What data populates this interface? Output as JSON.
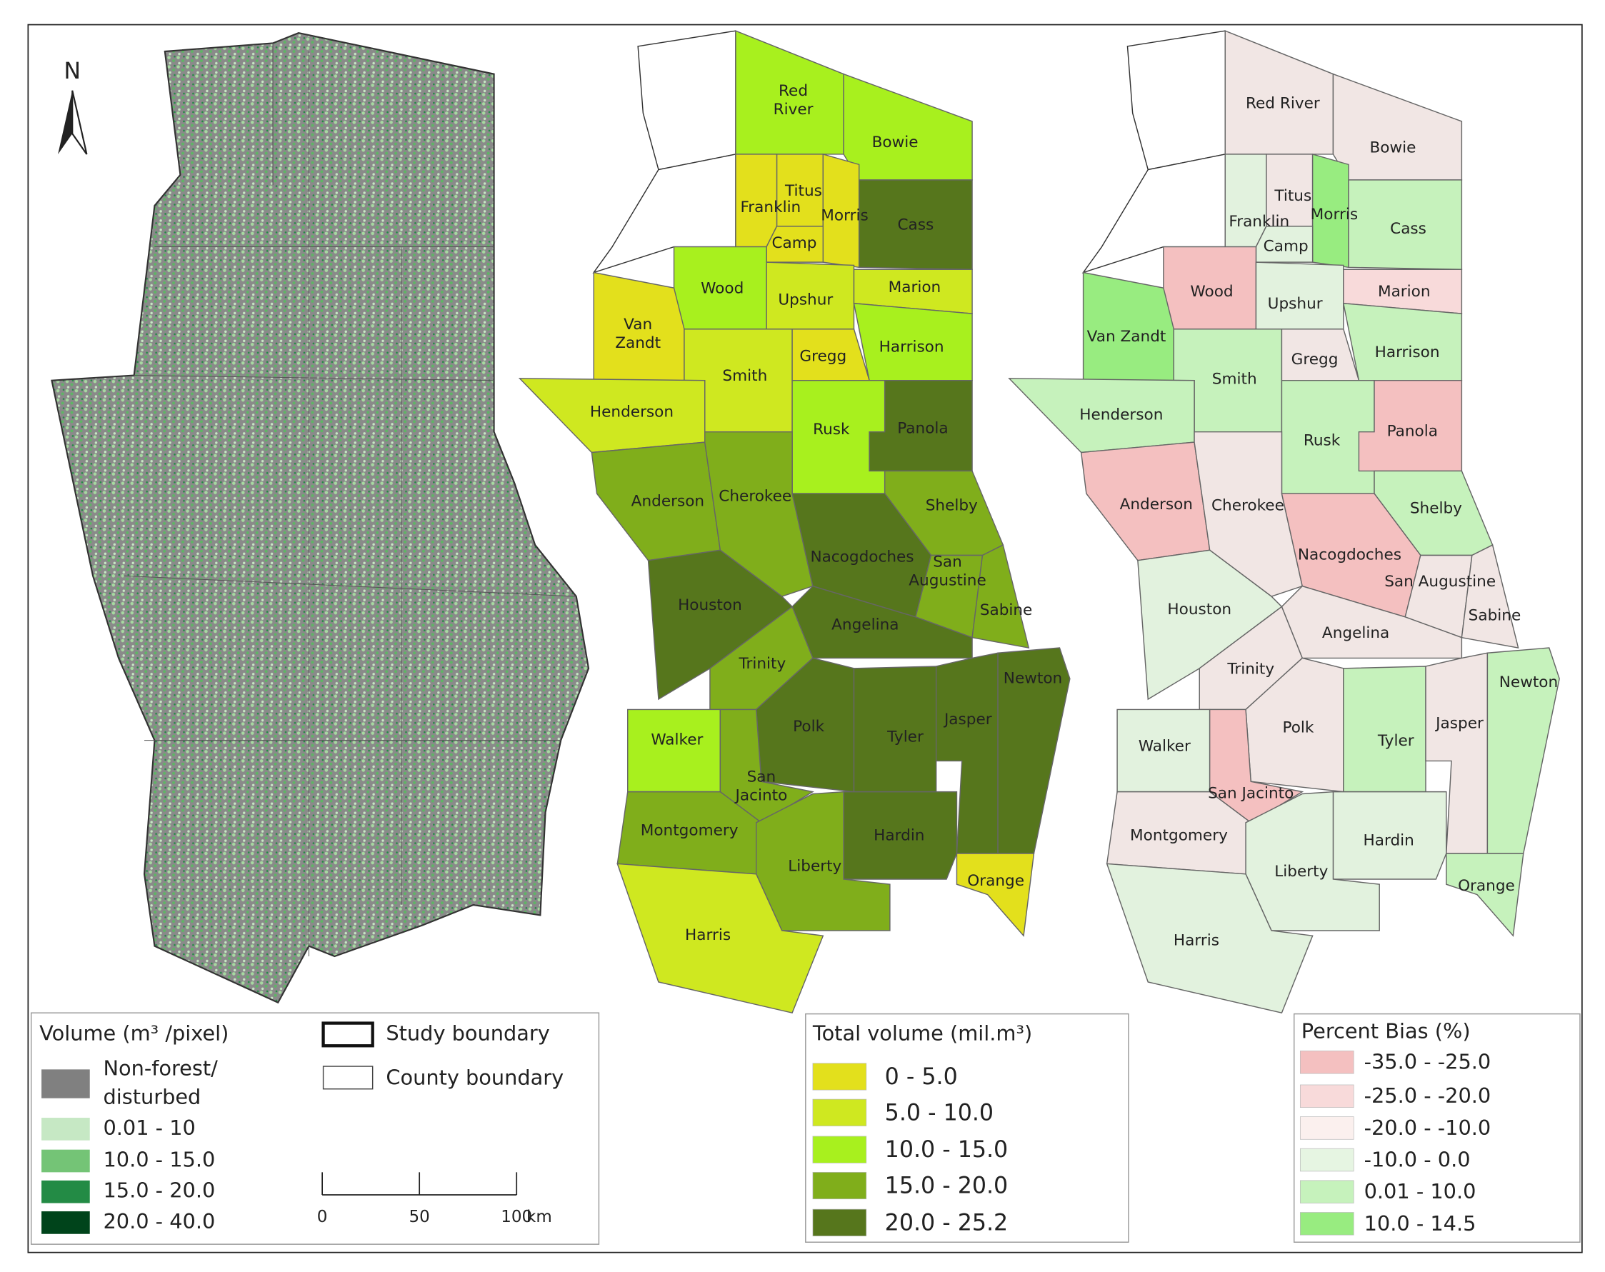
{
  "north_arrow": "N",
  "volume_legend": {
    "title": "Volume (m³ /pixel)",
    "items": [
      {
        "label": [
          "Non-forest/",
          "disturbed"
        ],
        "color": "#808080"
      },
      {
        "label": "0.01 - 10",
        "color": "#c6e8c4"
      },
      {
        "label": "10.0 - 15.0",
        "color": "#74c476"
      },
      {
        "label": "15.0 - 20.0",
        "color": "#238b45"
      },
      {
        "label": "20.0 - 40.0",
        "color": "#00441b"
      }
    ]
  },
  "boundary_legend": {
    "items": [
      "Study boundary",
      "County boundary"
    ]
  },
  "scale_bar": {
    "ticks": [
      0,
      50,
      100
    ],
    "unit": "km"
  },
  "total_volume_map": {
    "legend": {
      "title": "Total volume (mil.m³)",
      "items": [
        {
          "label": "0 - 5.0",
          "color": "#e3e01c"
        },
        {
          "label": "5.0 - 10.0",
          "color": "#cfe820"
        },
        {
          "label": "10.0 - 15.0",
          "color": "#a8f01e"
        },
        {
          "label": "15.0 - 20.0",
          "color": "#80ae1b"
        },
        {
          "label": "20.0 - 25.2",
          "color": "#56761c"
        }
      ]
    },
    "counties": [
      {
        "label": [
          "Red",
          "River"
        ],
        "color": "#a8f01e"
      },
      {
        "label": "Bowie",
        "color": "#a8f01e"
      },
      {
        "label": "Titus",
        "color": "#e3e01c"
      },
      {
        "label": "Franklin",
        "color": "#e3e01c"
      },
      {
        "label": "Morris",
        "color": "#e3e01c"
      },
      {
        "label": "Cass",
        "color": "#56761c"
      },
      {
        "label": "Camp",
        "color": "#e3e01c"
      },
      {
        "label": "Wood",
        "color": "#a8f01e"
      },
      {
        "label": "Upshur",
        "color": "#cfe820"
      },
      {
        "label": "Marion",
        "color": "#cfe820"
      },
      {
        "label": [
          "Van",
          "Zandt"
        ],
        "color": "#e3e01c"
      },
      {
        "label": "Smith",
        "color": "#cfe820"
      },
      {
        "label": "Gregg",
        "color": "#e3e01c"
      },
      {
        "label": "Harrison",
        "color": "#a8f01e"
      },
      {
        "label": "Henderson",
        "color": "#cfe820"
      },
      {
        "label": "Rusk",
        "color": "#a8f01e"
      },
      {
        "label": "Panola",
        "color": "#56761c"
      },
      {
        "label": "Anderson",
        "color": "#80ae1b"
      },
      {
        "label": "Cherokee",
        "color": "#80ae1b"
      },
      {
        "label": "Shelby",
        "color": "#80ae1b"
      },
      {
        "label": "Nacogdoches",
        "color": "#56761c"
      },
      {
        "label": [
          "San",
          "Augustine"
        ],
        "color": "#80ae1b"
      },
      {
        "label": "Sabine",
        "color": "#80ae1b"
      },
      {
        "label": "Houston",
        "color": "#56761c"
      },
      {
        "label": "Angelina",
        "color": "#56761c"
      },
      {
        "label": "Trinity",
        "color": "#80ae1b"
      },
      {
        "label": "Polk",
        "color": "#56761c"
      },
      {
        "label": "Tyler",
        "color": "#56761c"
      },
      {
        "label": "Jasper",
        "color": "#56761c"
      },
      {
        "label": "Newton",
        "color": "#56761c"
      },
      {
        "label": "Walker",
        "color": "#a8f01e"
      },
      {
        "label": [
          "San",
          "Jacinto"
        ],
        "color": "#80ae1b"
      },
      {
        "label": "Montgomery",
        "color": "#80ae1b"
      },
      {
        "label": "Hardin",
        "color": "#56761c"
      },
      {
        "label": "Liberty",
        "color": "#80ae1b"
      },
      {
        "label": "Orange",
        "color": "#e3e01c"
      },
      {
        "label": "Harris",
        "color": "#cfe820"
      }
    ]
  },
  "percent_bias_map": {
    "legend": {
      "title": "Percent Bias (%)",
      "items": [
        {
          "label": "-35.0 - -25.0",
          "color": "#f4c0c0"
        },
        {
          "label": "-25.0 - -20.0",
          "color": "#f8dada"
        },
        {
          "label": "-20.0 - -10.0",
          "color": "#fbf0ee"
        },
        {
          "label": "-10.0 - 0.0",
          "color": "#e6f5e2"
        },
        {
          "label": "0.01 - 10.0",
          "color": "#c6f2bc"
        },
        {
          "label": "10.0 - 14.5",
          "color": "#98ec80"
        }
      ]
    },
    "counties": [
      {
        "label": "Red River",
        "color": "#f1e6e4"
      },
      {
        "label": "Bowie",
        "color": "#f1e6e4"
      },
      {
        "label": "Titus",
        "color": "#f1e6e4"
      },
      {
        "label": "Franklin",
        "color": "#e2f2de"
      },
      {
        "label": "Morris",
        "color": "#98ec80"
      },
      {
        "label": "Cass",
        "color": "#c6f2bc"
      },
      {
        "label": "Camp",
        "color": "#e2f2de"
      },
      {
        "label": "Wood",
        "color": "#f4c0c0"
      },
      {
        "label": "Upshur",
        "color": "#e2f2de"
      },
      {
        "label": "Marion",
        "color": "#f8dada"
      },
      {
        "label": "Van Zandt",
        "color": "#98ec80"
      },
      {
        "label": "Smith",
        "color": "#c6f2bc"
      },
      {
        "label": "Gregg",
        "color": "#f1e6e4"
      },
      {
        "label": "Harrison",
        "color": "#c6f2bc"
      },
      {
        "label": "Henderson",
        "color": "#c6f2bc"
      },
      {
        "label": "Rusk",
        "color": "#c6f2bc"
      },
      {
        "label": "Panola",
        "color": "#f4c0c0"
      },
      {
        "label": "Anderson",
        "color": "#f4c0c0"
      },
      {
        "label": "Cherokee",
        "color": "#f1e6e4"
      },
      {
        "label": "Shelby",
        "color": "#c6f2bc"
      },
      {
        "label": "Nacogdoches",
        "color": "#f4c0c0"
      },
      {
        "label": "San Augustine",
        "color": "#f1e6e4"
      },
      {
        "label": "Sabine",
        "color": "#f1e6e4"
      },
      {
        "label": "Houston",
        "color": "#e2f2de"
      },
      {
        "label": "Angelina",
        "color": "#f1e6e4"
      },
      {
        "label": "Trinity",
        "color": "#f1e6e4"
      },
      {
        "label": "Polk",
        "color": "#f1e6e4"
      },
      {
        "label": "Tyler",
        "color": "#c6f2bc"
      },
      {
        "label": "Jasper",
        "color": "#f1e6e4"
      },
      {
        "label": "Newton",
        "color": "#c6f2bc"
      },
      {
        "label": "Walker",
        "color": "#e2f2de"
      },
      {
        "label": "San Jacinto",
        "color": "#f4c0c0"
      },
      {
        "label": "Montgomery",
        "color": "#f1e6e4"
      },
      {
        "label": "Hardin",
        "color": "#e2f2de"
      },
      {
        "label": "Liberty",
        "color": "#e2f2de"
      },
      {
        "label": "Orange",
        "color": "#c6f2bc"
      },
      {
        "label": "Harris",
        "color": "#e2f2de"
      }
    ]
  }
}
